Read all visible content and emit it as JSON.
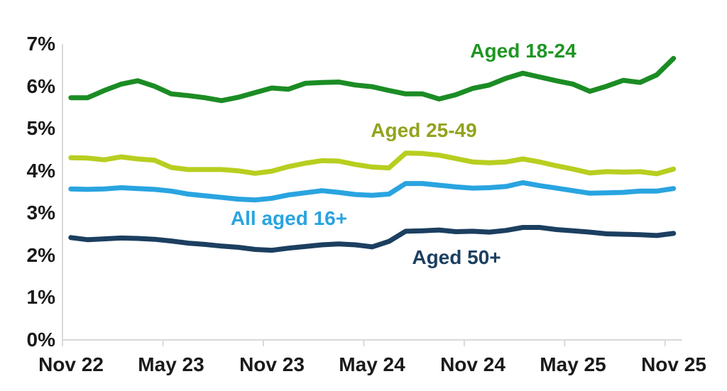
{
  "chart_data": {
    "type": "line",
    "title": "",
    "xlabel": "",
    "ylabel": "",
    "ylim": [
      0,
      7
    ],
    "y_tick_step": 1,
    "grid": false,
    "legend_position": "inline-labels-near-lines",
    "background_color": "#ffffff",
    "axis_color": "#d9d9d9",
    "tick_label_color": "#1a1a1a",
    "y_ticks": [
      "7%",
      "6%",
      "5%",
      "4%",
      "3%",
      "2%",
      "1%",
      "0%"
    ],
    "x_tick_labels": [
      "Nov 22",
      "May 23",
      "Nov 23",
      "May 24",
      "Nov 24",
      "May 25",
      "Nov 25"
    ],
    "x": [
      "Nov 22",
      "Dec 22",
      "Jan 23",
      "Feb 23",
      "Mar 23",
      "Apr 23",
      "May 23",
      "Jun 23",
      "Jul 23",
      "Aug 23",
      "Sep 23",
      "Oct 23",
      "Nov 23",
      "Dec 23",
      "Jan 24",
      "Feb 24",
      "Mar 24",
      "Apr 24",
      "May 24",
      "Jun 24",
      "Jul 24",
      "Aug 24",
      "Sep 24",
      "Oct 24",
      "Nov 24",
      "Dec 24",
      "Jan 25",
      "Feb 25",
      "Mar 25",
      "Apr 25",
      "May 25",
      "Jun 25",
      "Jul 25",
      "Aug 25",
      "Sep 25",
      "Oct 25",
      "Nov 25"
    ],
    "unit": "%",
    "series": [
      {
        "name": "Aged 18-24",
        "color": "#1b8c24",
        "label_color": "#1e9623",
        "values": [
          5.73,
          5.73,
          5.9,
          6.05,
          6.13,
          6.0,
          5.82,
          5.78,
          5.73,
          5.66,
          5.74,
          5.85,
          5.96,
          5.93,
          6.07,
          6.09,
          6.1,
          6.03,
          5.99,
          5.9,
          5.82,
          5.82,
          5.7,
          5.8,
          5.95,
          6.03,
          6.19,
          6.31,
          6.22,
          6.13,
          6.05,
          5.88,
          6.0,
          6.14,
          6.09,
          6.27,
          6.66
        ]
      },
      {
        "name": "Aged 25-49",
        "color": "#b8ce1f",
        "label_color": "#93a31d",
        "values": [
          4.31,
          4.3,
          4.26,
          4.33,
          4.28,
          4.25,
          4.08,
          4.03,
          4.03,
          4.03,
          4.0,
          3.94,
          3.99,
          4.1,
          4.18,
          4.24,
          4.23,
          4.15,
          4.09,
          4.07,
          4.42,
          4.41,
          4.37,
          4.29,
          4.21,
          4.19,
          4.21,
          4.28,
          4.21,
          4.12,
          4.04,
          3.95,
          3.98,
          3.97,
          3.98,
          3.93,
          4.04
        ]
      },
      {
        "name": "All aged 16+",
        "color": "#29a4e0",
        "label_color": "#29a4e0",
        "values": [
          3.57,
          3.56,
          3.57,
          3.6,
          3.58,
          3.56,
          3.52,
          3.45,
          3.41,
          3.37,
          3.33,
          3.31,
          3.35,
          3.43,
          3.48,
          3.53,
          3.49,
          3.44,
          3.42,
          3.45,
          3.7,
          3.7,
          3.66,
          3.62,
          3.59,
          3.6,
          3.63,
          3.72,
          3.65,
          3.59,
          3.53,
          3.47,
          3.48,
          3.49,
          3.52,
          3.52,
          3.58
        ]
      },
      {
        "name": "Aged 50+",
        "color": "#1c3f60",
        "label_color": "#1c3f60",
        "values": [
          2.42,
          2.37,
          2.39,
          2.41,
          2.4,
          2.38,
          2.34,
          2.29,
          2.26,
          2.22,
          2.19,
          2.14,
          2.12,
          2.17,
          2.21,
          2.25,
          2.27,
          2.25,
          2.2,
          2.33,
          2.57,
          2.58,
          2.6,
          2.56,
          2.57,
          2.55,
          2.59,
          2.66,
          2.66,
          2.61,
          2.58,
          2.55,
          2.51,
          2.5,
          2.49,
          2.47,
          2.52
        ]
      }
    ]
  }
}
